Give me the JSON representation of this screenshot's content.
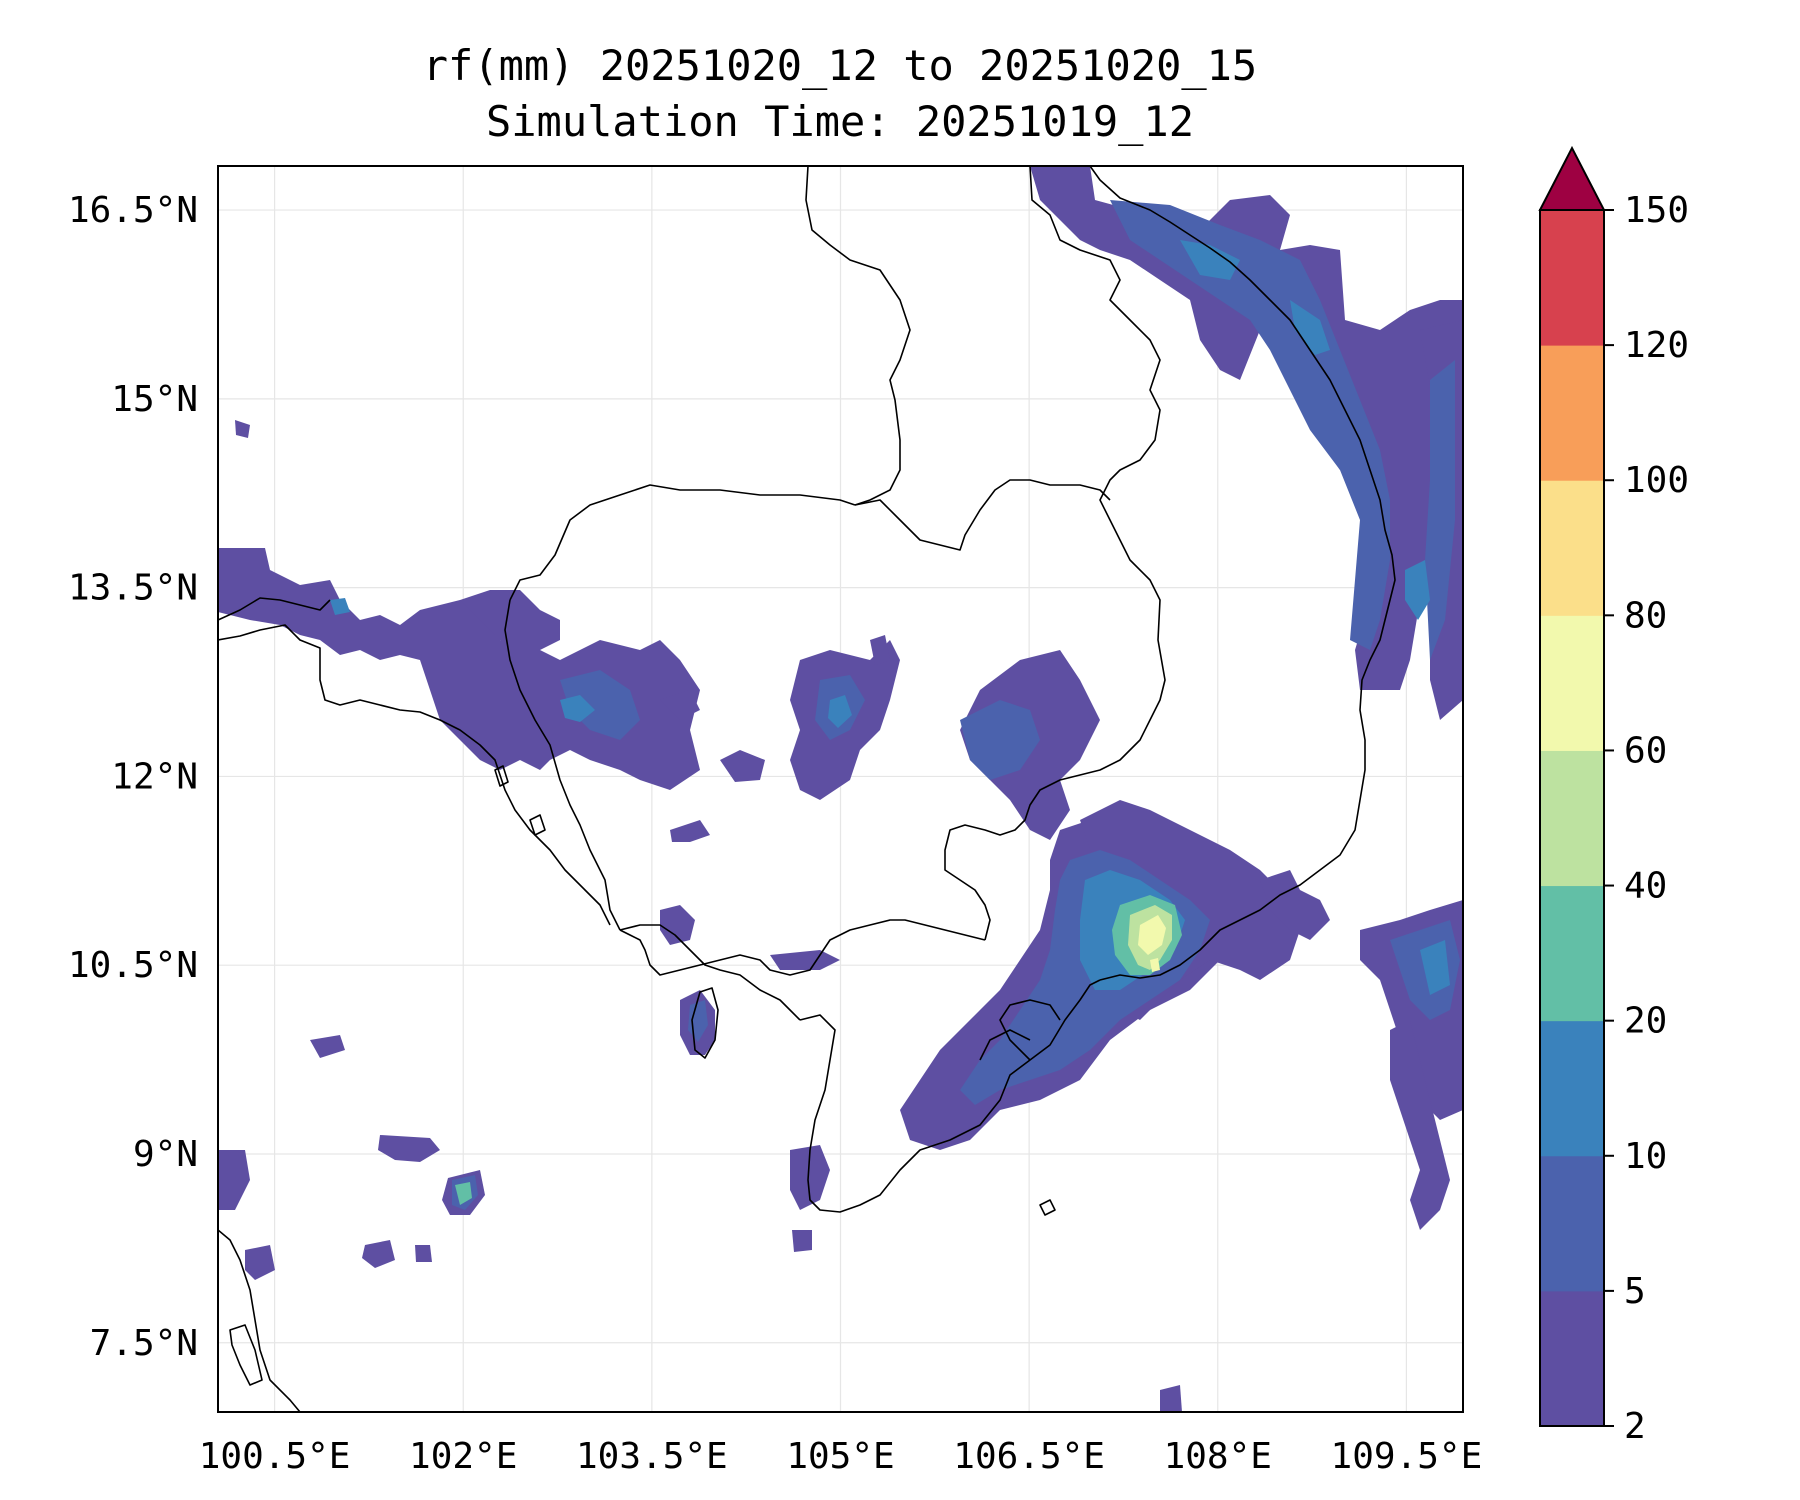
{
  "title": {
    "line1": "rf(mm) 20251020_12 to 20251020_15",
    "line2": "Simulation Time: 20251019_12"
  },
  "map": {
    "lon_range": [
      100.05,
      109.95
    ],
    "lat_range": [
      6.95,
      16.85
    ],
    "x_ticks": [
      {
        "value": 100.5,
        "label": "100.5°E"
      },
      {
        "value": 102.0,
        "label": "102°E"
      },
      {
        "value": 103.5,
        "label": "103.5°E"
      },
      {
        "value": 105.0,
        "label": "105°E"
      },
      {
        "value": 106.5,
        "label": "106.5°E"
      },
      {
        "value": 108.0,
        "label": "108°E"
      },
      {
        "value": 109.5,
        "label": "109.5°E"
      }
    ],
    "y_ticks": [
      {
        "value": 16.5,
        "label": "16.5°N"
      },
      {
        "value": 15.0,
        "label": "15°N"
      },
      {
        "value": 13.5,
        "label": "13.5°N"
      },
      {
        "value": 12.0,
        "label": "12°N"
      },
      {
        "value": 10.5,
        "label": "10.5°N"
      },
      {
        "value": 9.0,
        "label": "9°N"
      },
      {
        "value": 7.5,
        "label": "7.5°N"
      }
    ],
    "gridlines": true
  },
  "colorbar": {
    "levels": [
      "2",
      "5",
      "10",
      "20",
      "40",
      "60",
      "80",
      "100",
      "120",
      "150"
    ],
    "colors": [
      "#5e4fa2",
      "#4b62ad",
      "#3a82bc",
      "#62bfa6",
      "#bde2a0",
      "#f2f9ad",
      "#fbdf8a",
      "#f89e59",
      "#d7414e"
    ],
    "extend_color": "#9e0142"
  },
  "chart_data": {
    "type": "heatmap",
    "title": "rf(mm) 20251020_12 to 20251020_15",
    "subtitle": "Simulation Time: 20251019_12",
    "variable": "rf(mm)",
    "xlabel": "",
    "ylabel": "",
    "xlim": [
      100.05,
      109.95
    ],
    "ylim": [
      6.95,
      16.85
    ],
    "colorbar_levels": [
      2,
      5,
      10,
      20,
      40,
      60,
      80,
      100,
      120,
      150
    ],
    "colorbar_extend": "max",
    "max_value_approx": 80,
    "max_location_approx": {
      "lon": 107.9,
      "lat": 10.8
    }
  }
}
